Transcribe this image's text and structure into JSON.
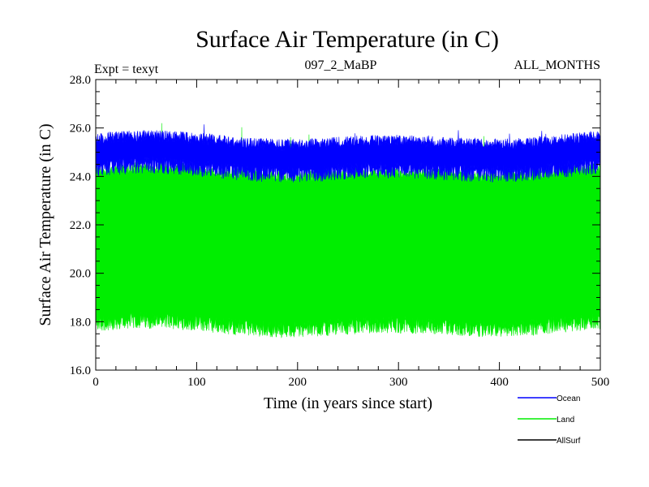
{
  "chart_data": {
    "type": "line",
    "title": "Surface Air Temperature (in C)",
    "subtitle_left": "Expt = texyt",
    "subtitle_center": "097_2_MaBP",
    "subtitle_right": "ALL_MONTHS",
    "xlabel": "Time (in years since start)",
    "ylabel": "Surface Air Temperature (in C)",
    "xlim": [
      0,
      500
    ],
    "ylim": [
      16.0,
      28.0
    ],
    "x_ticks": [
      0,
      100,
      200,
      300,
      400,
      500
    ],
    "x_tick_labels": [
      "0",
      "100",
      "200",
      "300",
      "400",
      "500"
    ],
    "y_ticks": [
      16.0,
      18.0,
      20.0,
      22.0,
      24.0,
      26.0,
      28.0
    ],
    "y_tick_labels": [
      "16.0",
      "18.0",
      "20.0",
      "22.0",
      "24.0",
      "26.0",
      "28.0"
    ],
    "grid": false,
    "legend_position": "bottom-right",
    "series": [
      {
        "name": "Ocean",
        "color": "#0000ff",
        "band_min": 23.9,
        "band_max": 25.7,
        "peak_max": 26.1
      },
      {
        "name": "Land",
        "color": "#00ee00",
        "band_min": 17.5,
        "band_max": 24.4,
        "peak_max": 26.3
      },
      {
        "name": "AllSurf",
        "color": "#000000"
      }
    ]
  }
}
